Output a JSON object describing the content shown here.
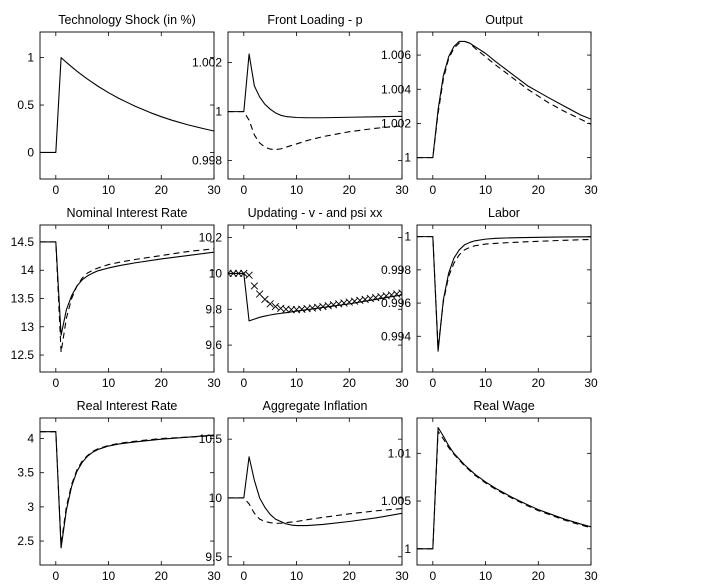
{
  "figure": {
    "line_color": "#000000",
    "background": "#ffffff"
  },
  "chart_data": [
    {
      "type": "line",
      "title": "Technology Shock (in %)",
      "xlim": [
        -3,
        30
      ],
      "ylim": [
        -0.28,
        1.27
      ],
      "xticks": [
        0,
        10,
        20,
        30
      ],
      "yticks": [
        0,
        0.5,
        1
      ],
      "ytick_labels": [
        "0",
        "0.5",
        "1"
      ],
      "series": [
        {
          "style": "solid",
          "x": [
            -3,
            0,
            1,
            2,
            3,
            4,
            5,
            6,
            8,
            10,
            12,
            15,
            18,
            20,
            22,
            25,
            28,
            30
          ],
          "y": [
            0,
            0,
            1.0,
            0.95,
            0.9025,
            0.857,
            0.815,
            0.774,
            0.698,
            0.63,
            0.569,
            0.488,
            0.418,
            0.377,
            0.34,
            0.292,
            0.251,
            0.226
          ]
        }
      ]
    },
    {
      "type": "line",
      "title": "Front Loading - p",
      "xlim": [
        -3,
        30
      ],
      "ylim": [
        0.99725,
        1.00325
      ],
      "xticks": [
        0,
        10,
        20,
        30
      ],
      "yticks": [
        0.998,
        1,
        1.002
      ],
      "ytick_labels": [
        "0.998",
        "1",
        "1.002"
      ],
      "series": [
        {
          "style": "solid",
          "x": [
            -3,
            0,
            1,
            2,
            3,
            4,
            5,
            6,
            7,
            8,
            10,
            12,
            15,
            20,
            25,
            30
          ],
          "y": [
            1.0,
            1.0,
            1.00235,
            1.00105,
            1.0006,
            1.0003,
            1.0001,
            0.99995,
            0.99985,
            0.9998,
            0.99976,
            0.99975,
            0.99975,
            0.99977,
            0.99979,
            0.99981
          ]
        },
        {
          "style": "dashed",
          "x": [
            -3,
            0,
            1,
            2,
            3,
            4,
            5,
            6,
            7,
            8,
            10,
            12,
            15,
            20,
            25,
            30
          ],
          "y": [
            1.0,
            1.0,
            0.99965,
            0.99905,
            0.99872,
            0.99855,
            0.99847,
            0.99845,
            0.99848,
            0.99855,
            0.99868,
            0.99882,
            0.99898,
            0.99918,
            0.99932,
            0.99942
          ]
        }
      ]
    },
    {
      "type": "line",
      "title": "Output",
      "xlim": [
        -3,
        30
      ],
      "ylim": [
        0.99875,
        1.00735
      ],
      "xticks": [
        0,
        10,
        20,
        30
      ],
      "yticks": [
        1,
        1.002,
        1.004,
        1.006
      ],
      "ytick_labels": [
        "1",
        "1.002",
        "1.004",
        "1.006"
      ],
      "series": [
        {
          "style": "solid",
          "x": [
            -3,
            0,
            1,
            2,
            3,
            4,
            5,
            6,
            7,
            8,
            10,
            12,
            15,
            18,
            20,
            22,
            25,
            28,
            30
          ],
          "y": [
            1.0,
            1.0,
            1.0028,
            1.0048,
            1.0059,
            1.0065,
            1.0068,
            1.0068,
            1.0067,
            1.0065,
            1.0061,
            1.0056,
            1.0049,
            1.0042,
            1.00385,
            1.0035,
            1.003,
            1.0025,
            1.00225
          ]
        },
        {
          "style": "dashed",
          "x": [
            -3,
            0,
            1,
            2,
            3,
            4,
            5,
            6,
            7,
            8,
            10,
            12,
            15,
            18,
            20,
            22,
            25,
            28,
            30
          ],
          "y": [
            1.0,
            1.0,
            1.0026,
            1.0046,
            1.0058,
            1.0064,
            1.0067,
            1.0068,
            1.0067,
            1.0064,
            1.0059,
            1.0054,
            1.0047,
            1.004,
            1.0036,
            1.0032,
            1.0027,
            1.00225,
            1.00195
          ]
        }
      ]
    },
    {
      "type": "line",
      "title": "Nominal Interest Rate",
      "xlim": [
        -3,
        30
      ],
      "ylim": [
        12.2,
        14.8
      ],
      "xticks": [
        0,
        10,
        20,
        30
      ],
      "yticks": [
        12.5,
        13,
        13.5,
        14,
        14.5
      ],
      "ytick_labels": [
        "12.5",
        "13",
        "13.5",
        "14",
        "14.5"
      ],
      "series": [
        {
          "style": "solid",
          "x": [
            -3,
            0,
            1,
            2,
            3,
            4,
            5,
            6,
            7,
            8,
            10,
            12,
            15,
            20,
            25,
            30
          ],
          "y": [
            14.5,
            14.5,
            12.85,
            13.3,
            13.55,
            13.72,
            13.83,
            13.9,
            13.95,
            13.99,
            14.04,
            14.08,
            14.13,
            14.2,
            14.26,
            14.32
          ]
        },
        {
          "style": "dashed",
          "x": [
            -3,
            0,
            1,
            2,
            3,
            4,
            5,
            6,
            7,
            8,
            10,
            12,
            15,
            20,
            25,
            30
          ],
          "y": [
            14.5,
            14.5,
            12.55,
            13.15,
            13.5,
            13.72,
            13.86,
            13.95,
            14.0,
            14.04,
            14.1,
            14.14,
            14.19,
            14.26,
            14.33,
            14.38
          ]
        }
      ]
    },
    {
      "type": "line",
      "title": "Updating - v - and psi xx",
      "xlim": [
        -3,
        30
      ],
      "ylim": [
        9.45,
        10.27
      ],
      "xticks": [
        0,
        10,
        20,
        30
      ],
      "yticks": [
        9.6,
        9.8,
        10,
        10.2
      ],
      "ytick_labels": [
        "9.6",
        "9.8",
        "10",
        "10.2"
      ],
      "series": [
        {
          "style": "solid",
          "x": [
            -3,
            0,
            1,
            2,
            3,
            4,
            5,
            6,
            7,
            8,
            10,
            12,
            15,
            20,
            25,
            30
          ],
          "y": [
            10.0,
            10.0,
            9.735,
            9.745,
            9.755,
            9.762,
            9.768,
            9.773,
            9.777,
            9.781,
            9.79,
            9.798,
            9.81,
            9.83,
            9.855,
            9.88
          ]
        },
        {
          "style": "crosses",
          "x": [
            -3,
            -2,
            -1,
            0,
            1,
            2,
            3,
            4,
            5,
            6,
            7,
            8,
            9,
            10,
            11,
            12,
            13,
            14,
            15,
            16,
            17,
            18,
            19,
            20,
            21,
            22,
            23,
            24,
            25,
            26,
            27,
            28,
            29,
            30
          ],
          "y": [
            10.0,
            10.0,
            10.0,
            10.0,
            9.99,
            9.93,
            9.885,
            9.855,
            9.83,
            9.815,
            9.805,
            9.8,
            9.798,
            9.798,
            9.8,
            9.803,
            9.807,
            9.811,
            9.815,
            9.82,
            9.825,
            9.83,
            9.835,
            9.84,
            9.845,
            9.85,
            9.855,
            9.86,
            9.865,
            9.87,
            9.875,
            9.88,
            9.885,
            9.89
          ]
        }
      ]
    },
    {
      "type": "line",
      "title": "Labor",
      "xlim": [
        -3,
        30
      ],
      "ylim": [
        0.99185,
        1.0007
      ],
      "xticks": [
        0,
        10,
        20,
        30
      ],
      "yticks": [
        0.994,
        0.996,
        0.998,
        1
      ],
      "ytick_labels": [
        "0.994",
        "0.996",
        "0.998",
        "1"
      ],
      "series": [
        {
          "style": "solid",
          "x": [
            -3,
            0,
            1,
            2,
            3,
            4,
            5,
            6,
            7,
            8,
            10,
            12,
            15,
            20,
            25,
            30
          ],
          "y": [
            1.0,
            1.0,
            0.9931,
            0.9962,
            0.9978,
            0.9987,
            0.9992,
            0.9995,
            0.99965,
            0.99975,
            0.99985,
            0.9999,
            0.99993,
            0.99996,
            0.99998,
            0.99999
          ]
        },
        {
          "style": "dashed",
          "x": [
            -3,
            0,
            1,
            2,
            3,
            4,
            5,
            6,
            7,
            8,
            10,
            12,
            15,
            20,
            25,
            30
          ],
          "y": [
            1.0,
            1.0,
            0.9933,
            0.9961,
            0.9976,
            0.9984,
            0.9989,
            0.9992,
            0.99935,
            0.99945,
            0.99955,
            0.9996,
            0.99965,
            0.99972,
            0.99978,
            0.99983
          ]
        }
      ]
    },
    {
      "type": "line",
      "title": "Real Interest Rate",
      "xlim": [
        -3,
        30
      ],
      "ylim": [
        2.15,
        4.3
      ],
      "xticks": [
        0,
        10,
        20,
        30
      ],
      "yticks": [
        2.5,
        3,
        3.5,
        4
      ],
      "ytick_labels": [
        "2.5",
        "3",
        "3.5",
        "4"
      ],
      "series": [
        {
          "style": "solid",
          "x": [
            -3,
            0,
            1,
            2,
            3,
            4,
            5,
            6,
            7,
            8,
            10,
            12,
            15,
            20,
            25,
            30
          ],
          "y": [
            4.1,
            4.1,
            2.4,
            2.95,
            3.3,
            3.52,
            3.65,
            3.74,
            3.8,
            3.84,
            3.89,
            3.92,
            3.95,
            3.99,
            4.02,
            4.05
          ]
        },
        {
          "style": "dashed",
          "x": [
            -3,
            0,
            1,
            2,
            3,
            4,
            5,
            6,
            7,
            8,
            10,
            12,
            15,
            20,
            25,
            30
          ],
          "y": [
            4.1,
            4.1,
            2.45,
            3.0,
            3.33,
            3.54,
            3.67,
            3.75,
            3.81,
            3.85,
            3.9,
            3.93,
            3.96,
            4.0,
            4.02,
            4.04
          ]
        }
      ]
    },
    {
      "type": "line",
      "title": "Aggregate Inflation",
      "xlim": [
        -3,
        30
      ],
      "ylim": [
        9.43,
        10.68
      ],
      "xticks": [
        0,
        10,
        20,
        30
      ],
      "yticks": [
        9.5,
        10,
        10.5
      ],
      "ytick_labels": [
        "9.5",
        "10",
        "10.5"
      ],
      "series": [
        {
          "style": "solid",
          "x": [
            -3,
            0,
            1,
            2,
            3,
            4,
            5,
            6,
            7,
            8,
            9,
            10,
            12,
            15,
            20,
            25,
            30
          ],
          "y": [
            10.0,
            10.0,
            10.35,
            10.15,
            10.0,
            9.92,
            9.86,
            9.82,
            9.8,
            9.78,
            9.77,
            9.765,
            9.765,
            9.775,
            9.8,
            9.83,
            9.87
          ]
        },
        {
          "style": "dashed",
          "x": [
            -3,
            0,
            1,
            2,
            3,
            4,
            5,
            6,
            7,
            8,
            9,
            10,
            12,
            15,
            20,
            25,
            30
          ],
          "y": [
            10.0,
            10.0,
            9.95,
            9.87,
            9.82,
            9.8,
            9.79,
            9.785,
            9.785,
            9.79,
            9.795,
            9.8,
            9.815,
            9.835,
            9.865,
            9.89,
            9.91
          ]
        }
      ]
    },
    {
      "type": "line",
      "title": "Real Wage",
      "xlim": [
        -3,
        30
      ],
      "ylim": [
        0.9983,
        1.0137
      ],
      "xticks": [
        0,
        10,
        20,
        30
      ],
      "yticks": [
        1,
        1.005,
        1.01
      ],
      "ytick_labels": [
        "1",
        "1.005",
        "1.01"
      ],
      "series": [
        {
          "style": "solid",
          "x": [
            -3,
            0,
            1,
            2,
            3,
            4,
            5,
            6,
            8,
            10,
            12,
            15,
            18,
            20,
            22,
            25,
            28,
            30
          ],
          "y": [
            1.0,
            1.0,
            1.0127,
            1.0118,
            1.0108,
            1.01,
            1.0094,
            1.0088,
            1.0078,
            1.007,
            1.0063,
            1.0054,
            1.0046,
            1.0041,
            1.0037,
            1.0031,
            1.0026,
            1.0023
          ]
        },
        {
          "style": "dashed",
          "x": [
            -3,
            0,
            1,
            2,
            3,
            4,
            5,
            6,
            8,
            10,
            12,
            15,
            18,
            20,
            22,
            25,
            28,
            30
          ],
          "y": [
            1.0,
            1.0,
            1.0123,
            1.0115,
            1.0106,
            1.0099,
            1.0093,
            1.0087,
            1.0077,
            1.0069,
            1.0062,
            1.0053,
            1.0045,
            1.004,
            1.0036,
            1.003,
            1.0025,
            1.0022
          ]
        }
      ]
    }
  ]
}
